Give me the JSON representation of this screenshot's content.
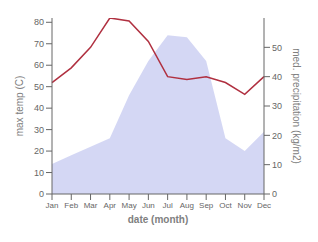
{
  "chart_data": {
    "type": "line",
    "categories": [
      "Jan",
      "Feb",
      "Mar",
      "Apr",
      "May",
      "Jun",
      "Jul",
      "Aug",
      "Sep",
      "Oct",
      "Nov",
      "Dec"
    ],
    "xlabel": "date (month)",
    "ylabel": "max temp (C)",
    "y2label": "med. precipitation (kg/m2)",
    "ylim": [
      0,
      82
    ],
    "yticks": [
      0,
      10,
      20,
      30,
      40,
      50,
      60,
      70,
      80
    ],
    "y2lim": [
      0,
      60
    ],
    "y2ticks": [
      0,
      10,
      20,
      30,
      40,
      50
    ],
    "series": [
      {
        "type": "area",
        "color": "#c5caf0",
        "values": [
          14,
          18,
          22,
          26,
          46,
          62,
          74,
          73,
          62,
          26,
          20,
          29
        ]
      },
      {
        "type": "line",
        "color": "#b03040",
        "axis": "y2",
        "values": [
          38,
          43,
          50,
          60,
          59,
          52,
          40,
          39,
          40,
          38,
          34,
          40
        ]
      }
    ]
  }
}
